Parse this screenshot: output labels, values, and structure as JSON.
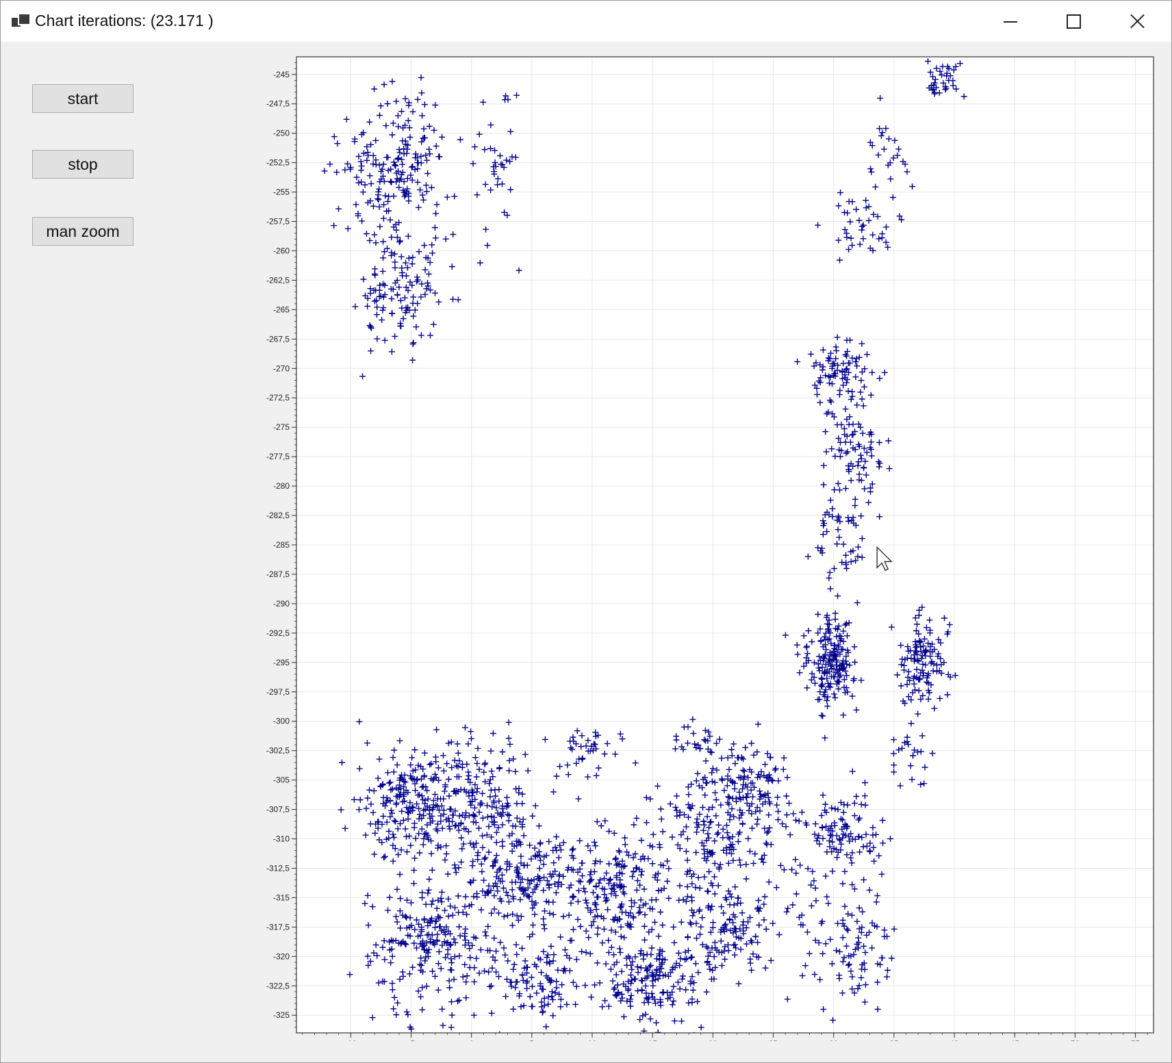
{
  "window": {
    "title": "Chart iterations: (23.171 )",
    "icon": "app-window-icon",
    "controls": [
      "minimize-icon",
      "maximize-icon",
      "close-icon"
    ]
  },
  "buttons": {
    "start": "start",
    "stop": "stop",
    "zoom": "man zoom"
  },
  "chart_data": {
    "type": "scatter",
    "marker": "+",
    "marker_color": "#00008b",
    "grid": true,
    "xlim": [
      -14.5,
      56.5
    ],
    "ylim": [
      -326.5,
      -243.5
    ],
    "x_ticks": [
      -10,
      -5,
      0,
      5,
      10,
      15,
      20,
      25,
      30,
      35,
      40,
      45,
      50,
      55
    ],
    "x_tick_labels": [
      "-10",
      "-5",
      "0",
      "5",
      "10",
      "15",
      "20",
      "25",
      "30",
      "35",
      "40",
      "45",
      "50",
      "55"
    ],
    "y_ticks": [
      -245,
      -247.5,
      -250,
      -252.5,
      -255,
      -257.5,
      -260,
      -262.5,
      -265,
      -267.5,
      -270,
      -272.5,
      -275,
      -277.5,
      -280,
      -282.5,
      -285,
      -287.5,
      -290,
      -292.5,
      -295,
      -297.5,
      -300,
      -302.5,
      -305,
      -307.5,
      -310,
      -312.5,
      -315,
      -317.5,
      -320,
      -322.5,
      -325
    ],
    "y_tick_labels": [
      "-245",
      "-247,5",
      "-250",
      "-252,5",
      "-255",
      "-257,5",
      "-260",
      "-262,5",
      "-265",
      "-267,5",
      "-270",
      "-272,5",
      "-275",
      "-277,5",
      "-280",
      "-282,5",
      "-285",
      "-287,5",
      "-290",
      "-292,5",
      "-295",
      "-297,5",
      "-300",
      "-302,5",
      "-305",
      "-307,5",
      "-310",
      "-312,5",
      "-315",
      "-317,5",
      "-320",
      "-322,5",
      "-325"
    ],
    "clusters": [
      {
        "cx": -6.5,
        "cy": -252.5,
        "sx": 3.0,
        "sy": 4.0,
        "n": 190
      },
      {
        "cx": -6.0,
        "cy": -263.5,
        "sx": 2.6,
        "sy": 4.0,
        "n": 130
      },
      {
        "cx": 1.8,
        "cy": -253.0,
        "sx": 1.8,
        "sy": 5.0,
        "n": 40
      },
      {
        "cx": 39.0,
        "cy": -245.5,
        "sx": 1.6,
        "sy": 1.3,
        "n": 35
      },
      {
        "cx": 34.5,
        "cy": -251.5,
        "sx": 1.3,
        "sy": 2.5,
        "n": 25
      },
      {
        "cx": 32.5,
        "cy": -258.0,
        "sx": 2.0,
        "sy": 1.8,
        "n": 40
      },
      {
        "cx": 30.5,
        "cy": -270.0,
        "sx": 1.8,
        "sy": 2.2,
        "n": 85
      },
      {
        "cx": 31.5,
        "cy": -277.0,
        "sx": 2.0,
        "sy": 2.5,
        "n": 80
      },
      {
        "cx": 30.5,
        "cy": -284.5,
        "sx": 1.6,
        "sy": 3.0,
        "n": 55
      },
      {
        "cx": 29.8,
        "cy": -294.5,
        "sx": 1.5,
        "sy": 3.0,
        "n": 180
      },
      {
        "cx": 37.5,
        "cy": -295.0,
        "sx": 1.6,
        "sy": 2.6,
        "n": 120
      },
      {
        "cx": 36.0,
        "cy": -303.5,
        "sx": 1.5,
        "sy": 2.2,
        "n": 25
      },
      {
        "cx": 31.0,
        "cy": -309.5,
        "sx": 2.4,
        "sy": 2.5,
        "n": 100
      },
      {
        "cx": 31.5,
        "cy": -319.5,
        "sx": 2.5,
        "sy": 3.8,
        "n": 90
      },
      {
        "cx": -5.0,
        "cy": -307.0,
        "sx": 3.2,
        "sy": 3.5,
        "n": 230
      },
      {
        "cx": 1.0,
        "cy": -307.0,
        "sx": 2.8,
        "sy": 4.0,
        "n": 180
      },
      {
        "cx": -3.0,
        "cy": -319.0,
        "sx": 4.0,
        "sy": 4.5,
        "n": 260
      },
      {
        "cx": 4.5,
        "cy": -313.0,
        "sx": 2.5,
        "sy": 3.0,
        "n": 150
      },
      {
        "cx": 5.5,
        "cy": -322.0,
        "sx": 2.5,
        "sy": 3.0,
        "n": 110
      },
      {
        "cx": 9.5,
        "cy": -302.5,
        "sx": 1.8,
        "sy": 1.5,
        "n": 35
      },
      {
        "cx": 11.5,
        "cy": -314.0,
        "sx": 3.5,
        "sy": 4.0,
        "n": 220
      },
      {
        "cx": 15.0,
        "cy": -322.0,
        "sx": 3.0,
        "sy": 3.0,
        "n": 180
      },
      {
        "cx": 19.5,
        "cy": -310.0,
        "sx": 3.0,
        "sy": 4.5,
        "n": 150
      },
      {
        "cx": 23.0,
        "cy": -306.0,
        "sx": 2.5,
        "sy": 3.0,
        "n": 140
      },
      {
        "cx": 21.0,
        "cy": -318.0,
        "sx": 3.2,
        "sy": 3.0,
        "n": 120
      },
      {
        "cx": 26.5,
        "cy": -314.0,
        "sx": 2.0,
        "sy": 5.0,
        "n": 40
      },
      {
        "cx": 18.5,
        "cy": -302.0,
        "sx": 1.2,
        "sy": 1.5,
        "n": 25
      }
    ]
  }
}
